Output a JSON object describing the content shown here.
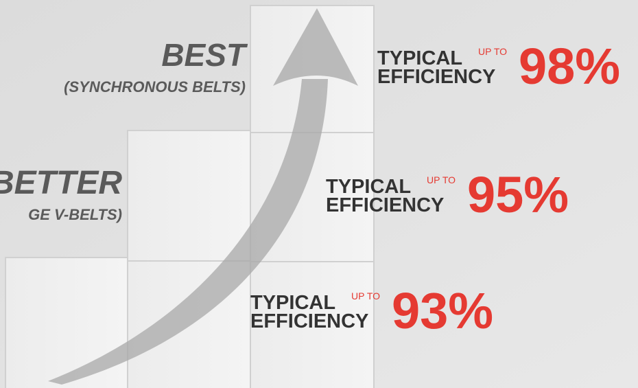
{
  "best": {
    "title": "BEST",
    "subtitle": "(SYNCHRONOUS BELTS)"
  },
  "better": {
    "title": "BETTER",
    "subtitle": "GE V-BELTS)"
  },
  "levels": [
    {
      "typical": "TYPICAL",
      "up_to": "UP TO",
      "efficiency": "EFFICIENCY",
      "value": "98%"
    },
    {
      "typical": "TYPICAL",
      "up_to": "UP TO",
      "efficiency": "EFFICIENCY",
      "value": "95%"
    },
    {
      "typical": "TYPICAL",
      "up_to": "UP TO",
      "efficiency": "EFFICIENCY",
      "value": "93%"
    }
  ]
}
